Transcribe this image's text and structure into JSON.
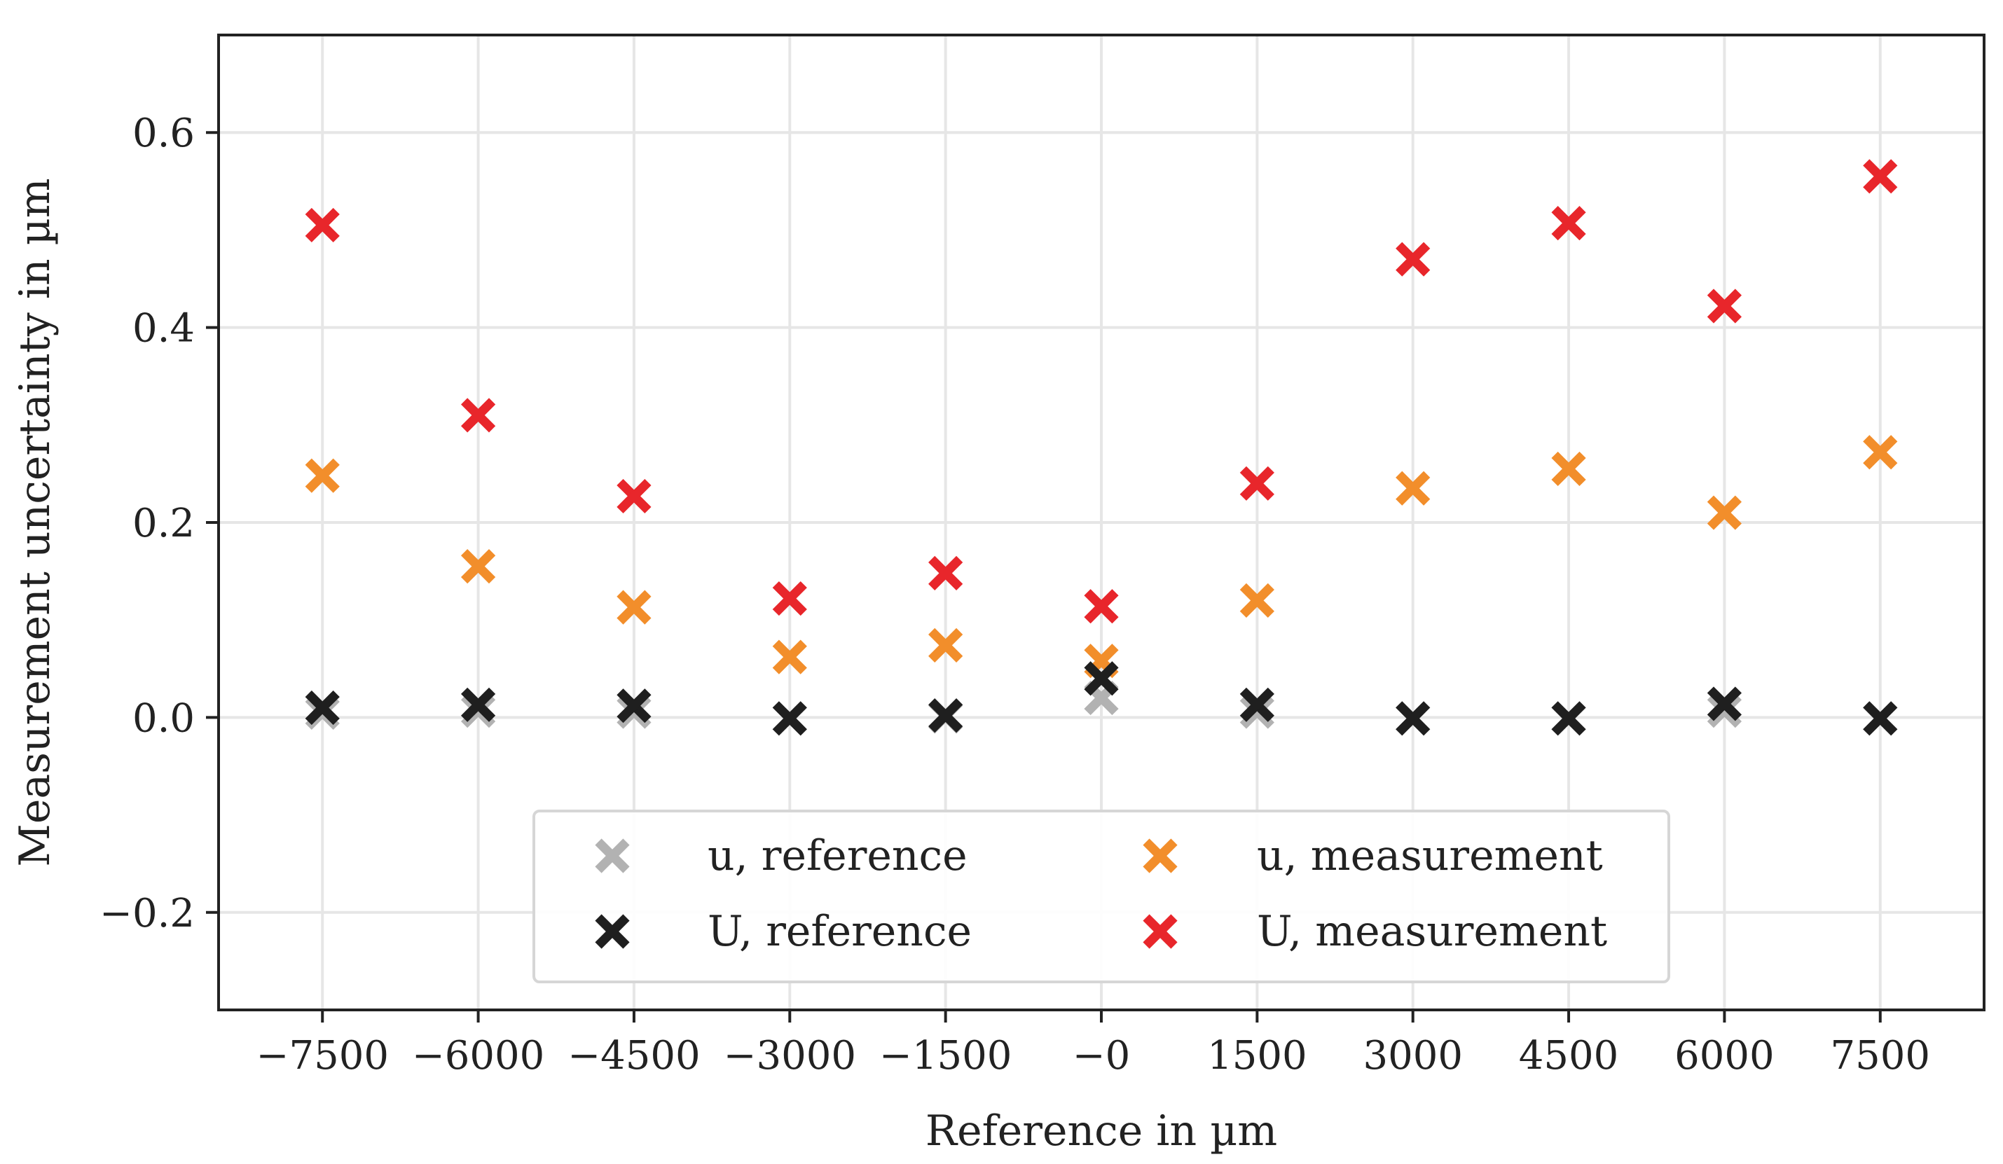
{
  "chart_data": {
    "type": "scatter",
    "title": "",
    "xlabel": "Reference in µm",
    "ylabel": "Measurement uncertainty in µm",
    "xlim": [
      -8500,
      8500
    ],
    "ylim": [
      -0.3,
      0.7
    ],
    "grid": true,
    "legend_position": "lower-center",
    "x_ticks": [
      -7500,
      -6000,
      -4500,
      -3000,
      -1500,
      0,
      1500,
      3000,
      4500,
      6000,
      7500
    ],
    "x_tick_labels": [
      "−7500",
      "−6000",
      "−4500",
      "−3000",
      "−1500",
      "−0",
      "1500",
      "3000",
      "4500",
      "6000",
      "7500"
    ],
    "y_ticks": [
      -0.2,
      0.0,
      0.2,
      0.4,
      0.6
    ],
    "y_tick_labels": [
      "−0.2",
      "0.0",
      "0.2",
      "0.4",
      "0.6"
    ],
    "x": [
      -7500,
      -6000,
      -4500,
      -3000,
      -1500,
      0,
      1500,
      3000,
      4500,
      6000,
      7500
    ],
    "series": [
      {
        "name": "u, reference",
        "color": "#b2b2b2",
        "values": [
          0.005,
          0.007,
          0.006,
          -0.001,
          0.001,
          0.02,
          0.006,
          -0.001,
          -0.001,
          0.007,
          -0.001
        ]
      },
      {
        "name": "u, measurement",
        "color": "#f28e2b",
        "values": [
          0.248,
          0.155,
          0.113,
          0.062,
          0.074,
          0.058,
          0.12,
          0.235,
          0.255,
          0.21,
          0.272
        ]
      },
      {
        "name": "U, reference",
        "color": "#1f1f1f",
        "values": [
          0.01,
          0.013,
          0.012,
          -0.001,
          0.002,
          0.04,
          0.013,
          -0.001,
          -0.001,
          0.014,
          -0.001
        ]
      },
      {
        "name": "U, measurement",
        "color": "#e8262b",
        "values": [
          0.505,
          0.31,
          0.227,
          0.122,
          0.148,
          0.114,
          0.24,
          0.47,
          0.507,
          0.422,
          0.555
        ]
      }
    ],
    "legend_order": [
      0,
      1,
      2,
      3
    ]
  }
}
